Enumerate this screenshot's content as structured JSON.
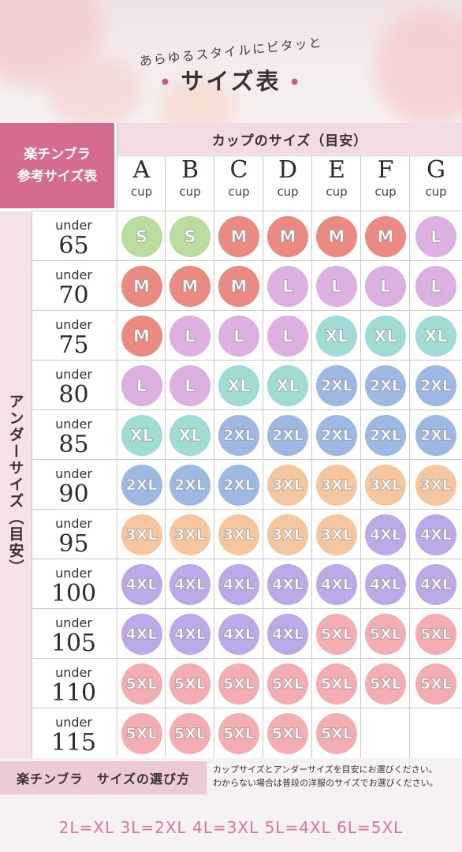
{
  "header": {
    "slogan": "あらゆるスタイルにピタッと",
    "title": "サイズ表",
    "title_dot": "•"
  },
  "table": {
    "corner_line1": "楽チンブラ",
    "corner_line2": "参考サイズ表",
    "cup_header": "カップのサイズ（目安）",
    "side_label": "アンダーサイズ（目安）",
    "cup_sub": "cup",
    "cups": [
      "A",
      "B",
      "C",
      "D",
      "E",
      "F",
      "G"
    ],
    "under_prefix": "under",
    "unders": [
      "65",
      "70",
      "75",
      "80",
      "85",
      "90",
      "95",
      "100",
      "105",
      "110",
      "115"
    ],
    "rows": [
      [
        "S",
        "S",
        "M",
        "M",
        "M",
        "M",
        "L"
      ],
      [
        "M",
        "M",
        "M",
        "L",
        "L",
        "L",
        "L"
      ],
      [
        "M",
        "L",
        "L",
        "L",
        "XL",
        "XL",
        "XL"
      ],
      [
        "L",
        "L",
        "XL",
        "XL",
        "2XL",
        "2XL",
        "2XL"
      ],
      [
        "XL",
        "XL",
        "2XL",
        "2XL",
        "2XL",
        "2XL",
        "2XL"
      ],
      [
        "2XL",
        "2XL",
        "2XL",
        "3XL",
        "3XL",
        "3XL",
        "3XL"
      ],
      [
        "3XL",
        "3XL",
        "3XL",
        "3XL",
        "3XL",
        "4XL",
        "4XL"
      ],
      [
        "4XL",
        "4XL",
        "4XL",
        "4XL",
        "4XL",
        "4XL",
        "4XL"
      ],
      [
        "4XL",
        "4XL",
        "4XL",
        "4XL",
        "5XL",
        "5XL",
        "5XL"
      ],
      [
        "5XL",
        "5XL",
        "5XL",
        "5XL",
        "5XL",
        "5XL",
        "5XL"
      ],
      [
        "5XL",
        "5XL",
        "5XL",
        "5XL",
        "5XL",
        "",
        ""
      ]
    ],
    "size_colors": {
      "S": "#b9dd9c",
      "M": "#ea8a80",
      "L": "#dcb0e0",
      "XL": "#9fdcd6",
      "2XL": "#9cb8e3",
      "3XL": "#f6c79e",
      "4XL": "#bcaae8",
      "5XL": "#f4adb0"
    }
  },
  "footer": {
    "title": "楽チンブラ　サイズの選び方",
    "note_line1": "カップサイズとアンダーサイズを目安にお選びください。",
    "note_line2": "わからない場合は普段の洋服のサイズでお選びください。",
    "conversion": "2L=XL 3L=2XL 4L=3XL 5L=4XL 6L=5XL"
  }
}
